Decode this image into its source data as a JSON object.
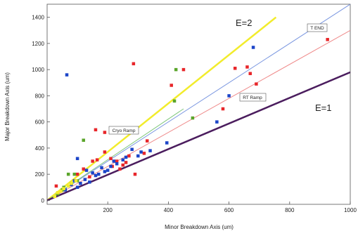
{
  "chart_data": {
    "type": "scatter",
    "xlabel": "Minor Breakdown Axis (um)",
    "ylabel": "Major Breakdown Axis (um)",
    "xlim": [
      0,
      1000
    ],
    "ylim": [
      -30,
      1500
    ],
    "xticks": [
      200,
      400,
      600,
      800,
      1000
    ],
    "yticks": [
      0,
      200,
      400,
      600,
      800,
      1000,
      1200,
      1400
    ],
    "grid": false,
    "colors": {
      "red": "#e8262a",
      "blue": "#1c45c8",
      "green": "#5aa52a",
      "yellow": "#f2ec2c",
      "purple": "#4b1d5e",
      "light_blue": "#7a96e0",
      "pink": "#ef8a8a",
      "light_green": "#7dc67a"
    },
    "lines": [
      {
        "label": "E=2",
        "x": [
          0,
          755
        ],
        "y": [
          0,
          1400
        ],
        "color": "#f2ec2c"
      },
      {
        "label": "T END",
        "x": [
          0,
          1000
        ],
        "y": [
          0,
          1500
        ],
        "color": "#7a96e0"
      },
      {
        "label": "RT Ramp",
        "x": [
          0,
          1000
        ],
        "y": [
          0,
          1300
        ],
        "color": "#ef8a8a"
      },
      {
        "label": "Cryo Ramp",
        "x": [
          0,
          450
        ],
        "y": [
          0,
          700
        ],
        "color": "#7dc67a"
      },
      {
        "label": "E=1",
        "x": [
          0,
          1000
        ],
        "y": [
          0,
          980
        ],
        "color": "#4b1d5e"
      }
    ],
    "series": [
      {
        "color": "red",
        "points": [
          [
            925,
            1230
          ],
          [
            660,
            1020
          ],
          [
            620,
            1010
          ],
          [
            670,
            970
          ],
          [
            450,
            1000
          ],
          [
            410,
            880
          ],
          [
            690,
            890
          ],
          [
            580,
            700
          ],
          [
            285,
            1045
          ],
          [
            160,
            540
          ],
          [
            190,
            520
          ],
          [
            190,
            370
          ],
          [
            210,
            320
          ],
          [
            230,
            300
          ],
          [
            260,
            290
          ],
          [
            330,
            455
          ],
          [
            290,
            200
          ],
          [
            120,
            240
          ],
          [
            150,
            300
          ],
          [
            30,
            110
          ],
          [
            250,
            270
          ],
          [
            270,
            340
          ],
          [
            215,
            260
          ],
          [
            240,
            240
          ],
          [
            320,
            360
          ],
          [
            165,
            310
          ],
          [
            100,
            200
          ],
          [
            140,
            180
          ]
        ]
      },
      {
        "color": "blue",
        "points": [
          [
            65,
            960
          ],
          [
            680,
            1170
          ],
          [
            600,
            800
          ],
          [
            560,
            600
          ],
          [
            395,
            440
          ],
          [
            340,
            380
          ],
          [
            90,
            150
          ],
          [
            100,
            100
          ],
          [
            110,
            130
          ],
          [
            125,
            160
          ],
          [
            140,
            140
          ],
          [
            150,
            210
          ],
          [
            160,
            190
          ],
          [
            170,
            200
          ],
          [
            180,
            250
          ],
          [
            190,
            220
          ],
          [
            200,
            230
          ],
          [
            210,
            260
          ],
          [
            220,
            300
          ],
          [
            230,
            280
          ],
          [
            250,
            310
          ],
          [
            260,
            330
          ],
          [
            280,
            390
          ],
          [
            300,
            340
          ],
          [
            310,
            370
          ],
          [
            100,
            320
          ],
          [
            130,
            230
          ],
          [
            80,
            120
          ],
          [
            60,
            80
          ]
        ]
      },
      {
        "color": "green",
        "points": [
          [
            425,
            1000
          ],
          [
            420,
            760
          ],
          [
            480,
            630
          ],
          [
            120,
            460
          ],
          [
            70,
            200
          ],
          [
            90,
            200
          ],
          [
            55,
            100
          ],
          [
            50,
            80
          ],
          [
            80,
            130
          ],
          [
            100,
            150
          ],
          [
            35,
            50
          ]
        ]
      },
      {
        "color": "yellow",
        "points": [
          [
            25,
            30
          ],
          [
            35,
            60
          ],
          [
            45,
            70
          ],
          [
            55,
            90
          ],
          [
            70,
            110
          ],
          [
            80,
            130
          ],
          [
            95,
            150
          ]
        ]
      }
    ]
  }
}
